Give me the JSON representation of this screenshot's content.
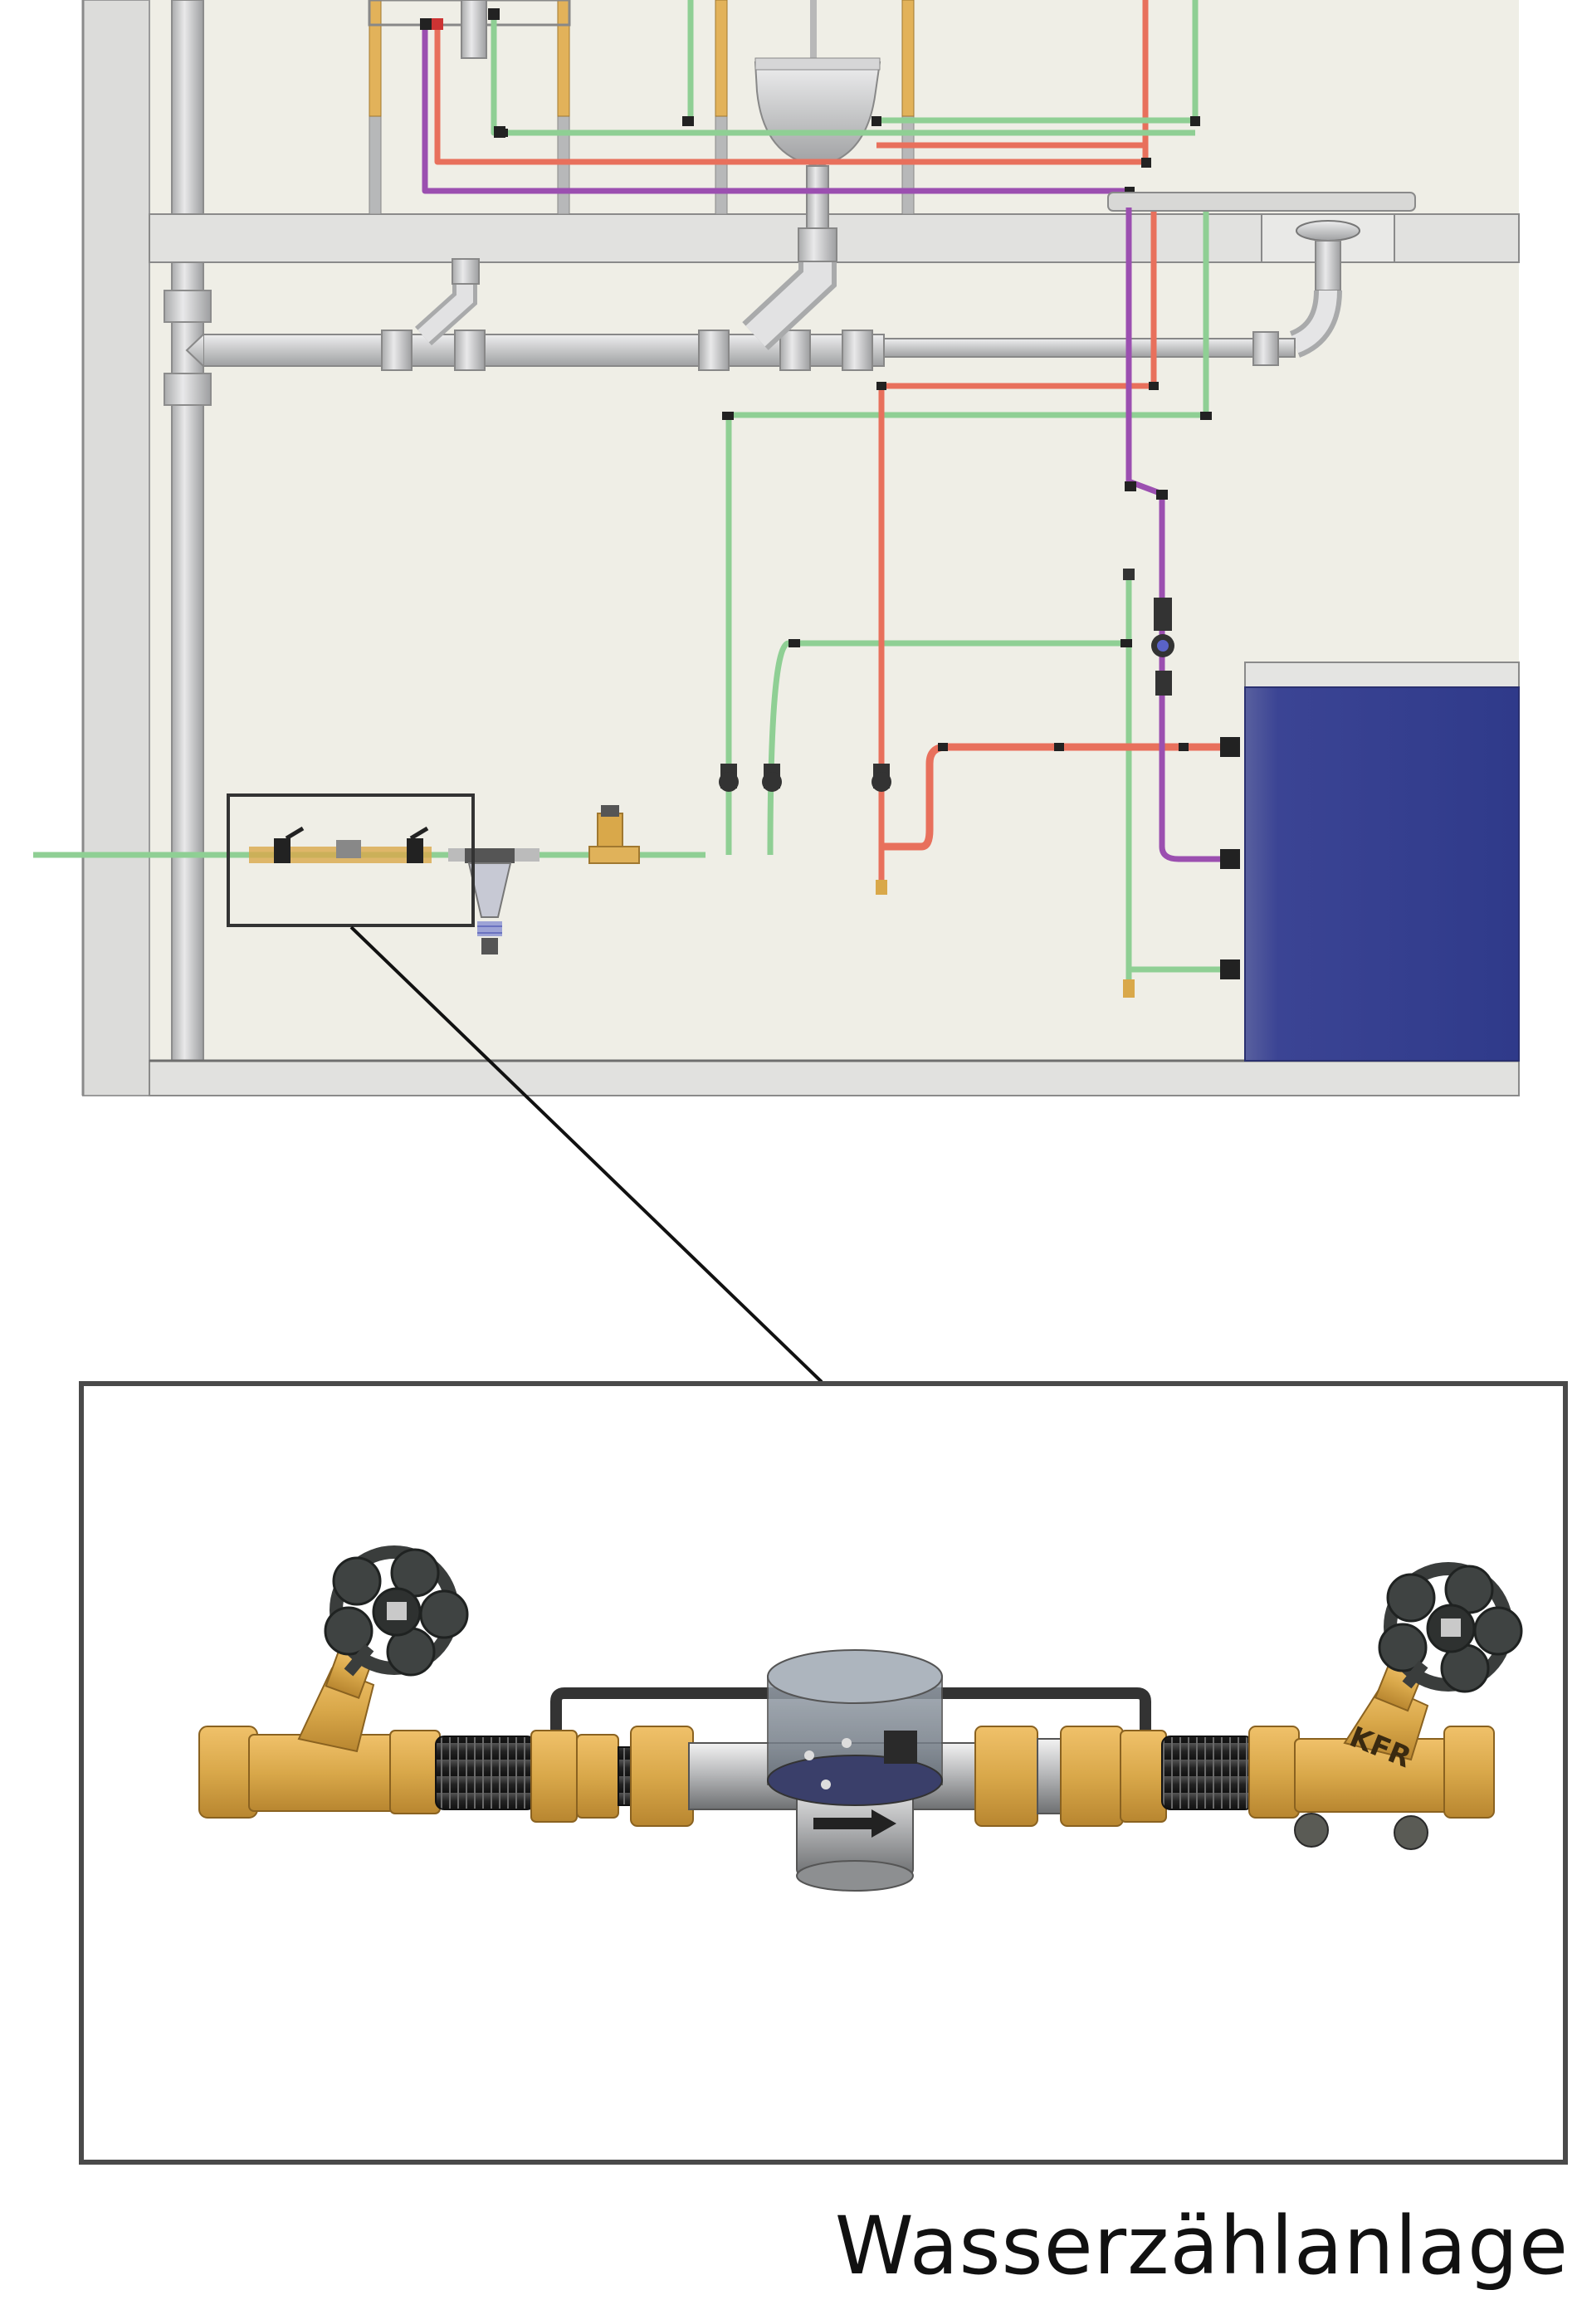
{
  "caption": "Wasserzählanlage",
  "detail": {
    "valve_mark": "KFR"
  },
  "colors": {
    "background": "#efeee6",
    "wall": "#d9d9d7",
    "drain_pipe": "#c7c8c9",
    "cold_water": "#8fcf94",
    "hot_water": "#e8705c",
    "circulation": "#9b4fb0",
    "tank": "#3b4494",
    "brass": "#d9a84a",
    "frame": "#4a4a4a"
  }
}
